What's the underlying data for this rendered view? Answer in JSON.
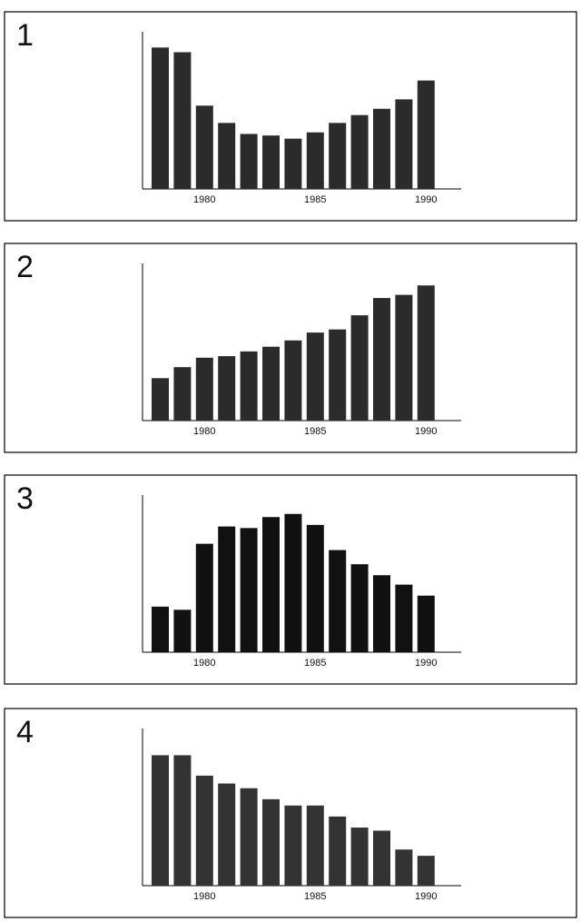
{
  "chart_data": [
    {
      "type": "bar",
      "title": "1",
      "categories": [
        null,
        null,
        "1980",
        null,
        null,
        null,
        null,
        "1985",
        null,
        null,
        null,
        null,
        "1990"
      ],
      "values": [
        90,
        87,
        53,
        42,
        35,
        34,
        32,
        36,
        42,
        47,
        51,
        57,
        69
      ],
      "color": "#2b2b2b",
      "ylim": [
        0,
        100
      ]
    },
    {
      "type": "bar",
      "title": "2",
      "categories": [
        null,
        null,
        "1980",
        null,
        null,
        null,
        null,
        "1985",
        null,
        null,
        null,
        null,
        "1990"
      ],
      "values": [
        27,
        34,
        40,
        41,
        44,
        47,
        51,
        56,
        58,
        67,
        78,
        80,
        86
      ],
      "color": "#2b2b2b",
      "ylim": [
        0,
        100
      ]
    },
    {
      "type": "bar",
      "title": "3",
      "categories": [
        null,
        null,
        "1980",
        null,
        null,
        null,
        null,
        "1985",
        null,
        null,
        null,
        null,
        "1990"
      ],
      "values": [
        29,
        27,
        69,
        80,
        79,
        86,
        88,
        81,
        65,
        56,
        49,
        43,
        36
      ],
      "color": "#111111",
      "ylim": [
        0,
        100
      ]
    },
    {
      "type": "bar",
      "title": "4",
      "categories": [
        null,
        null,
        "1980",
        null,
        null,
        null,
        null,
        "1985",
        null,
        null,
        null,
        null,
        "1990"
      ],
      "values": [
        83,
        83,
        70,
        65,
        62,
        55,
        51,
        51,
        44,
        37,
        35,
        23,
        19
      ],
      "color": "#333333",
      "ylim": [
        0,
        100
      ]
    }
  ]
}
